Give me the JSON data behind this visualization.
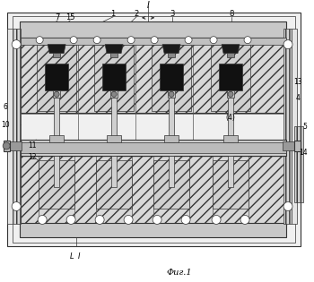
{
  "fig_label": "Фиг.1",
  "bg_color": "#ffffff",
  "lc": "#333333",
  "hatch_fc": "#cccccc",
  "white": "#ffffff",
  "dark": "#111111",
  "gray_light": "#dddddd",
  "gray_mid": "#aaaaaa"
}
